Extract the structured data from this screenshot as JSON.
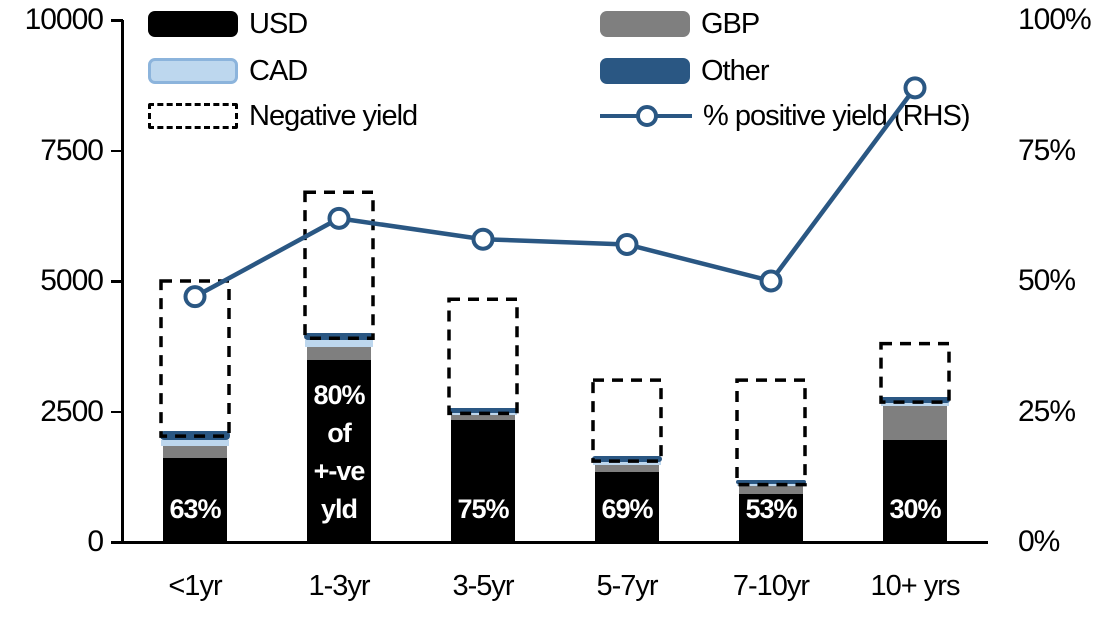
{
  "legend": {
    "items": [
      {
        "id": "usd",
        "label": "USD",
        "col": 0,
        "row": 0
      },
      {
        "id": "gbp",
        "label": "GBP",
        "col": 1,
        "row": 0
      },
      {
        "id": "cad",
        "label": "CAD",
        "col": 0,
        "row": 1
      },
      {
        "id": "other",
        "label": "Other",
        "col": 1,
        "row": 1
      },
      {
        "id": "negative",
        "label": "Negative yield",
        "col": 0,
        "row": 2
      },
      {
        "id": "line",
        "label": "% positive yield (RHS)",
        "col": 1,
        "row": 2
      }
    ]
  },
  "chart_data": {
    "type": "stacked-bar-line",
    "categories": [
      "<1yr",
      "1-3yr",
      "3-5yr",
      "5-7yr",
      "7-10yr",
      "10+ yrs"
    ],
    "series": [
      {
        "name": "USD",
        "values": [
          1610,
          3490,
          2330,
          1340,
          920,
          1950
        ]
      },
      {
        "name": "GBP",
        "values": [
          230,
          250,
          110,
          140,
          150,
          660
        ]
      },
      {
        "name": "CAD",
        "values": [
          115,
          130,
          40,
          45,
          35,
          45
        ]
      },
      {
        "name": "Other",
        "values": [
          170,
          130,
          80,
          120,
          90,
          120
        ]
      }
    ],
    "negative_yield_totals": [
      5000,
      6700,
      4650,
      3100,
      3100,
      3800
    ],
    "line_series": {
      "name": "% positive yield (RHS)",
      "values": [
        47,
        62,
        58,
        57,
        50,
        87
      ]
    },
    "bar_labels": [
      "63%",
      "80%\nof\n+-ve\nyld",
      "75%",
      "69%",
      "53%",
      "30%"
    ],
    "left_axis": {
      "tick_labels": [
        "0",
        "2500",
        "5000",
        "7500",
        "10000"
      ],
      "tick_values": [
        0,
        2500,
        5000,
        7500,
        10000
      ],
      "max": 10000
    },
    "right_axis": {
      "tick_labels": [
        "0%",
        "25%",
        "50%",
        "75%",
        "100%"
      ],
      "tick_values": [
        0,
        25,
        50,
        75,
        100
      ],
      "max": 100
    },
    "colors": {
      "usd": "#000000",
      "gbp": "#7F7F7F",
      "cad_fill": "#BDD7EE",
      "cad_border": "#8CB4DC",
      "other": "#2A5783",
      "line": "#2A5783",
      "negative_border": "#000000"
    },
    "legend_position": "top",
    "grid": false
  }
}
